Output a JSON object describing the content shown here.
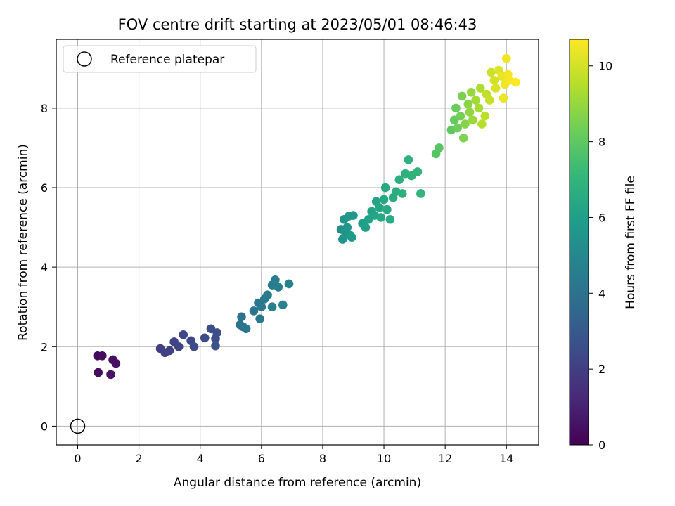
{
  "chart_data": {
    "type": "scatter",
    "title": "FOV centre drift starting at 2023/05/01 08:46:43",
    "xlabel": "Angular distance from reference (arcmin)",
    "ylabel": "Rotation from reference (arcmin)",
    "xlim": [
      -0.7,
      15.05
    ],
    "ylim": [
      -0.47,
      9.73
    ],
    "xticks": [
      0,
      2,
      4,
      6,
      8,
      10,
      12,
      14
    ],
    "yticks": [
      0,
      2,
      4,
      6,
      8
    ],
    "grid": true,
    "legend": {
      "placement": "top-left",
      "entries": [
        "Reference platepar"
      ]
    },
    "reference_point": {
      "x": 0,
      "y": 0
    },
    "colorbar": {
      "label": "Hours from first FF file",
      "range": [
        0,
        10.7
      ],
      "ticks": [
        0,
        2,
        4,
        6,
        8,
        10
      ],
      "colormap": [
        "#440154",
        "#482878",
        "#3e4989",
        "#31688e",
        "#26828e",
        "#1f9e89",
        "#35b779",
        "#6ece58",
        "#b5de2b",
        "#fde725"
      ]
    },
    "points": [
      [
        0.65,
        1.77,
        0.2
      ],
      [
        0.8,
        1.77,
        0.3
      ],
      [
        0.67,
        1.35,
        0.35
      ],
      [
        1.15,
        1.67,
        0.45
      ],
      [
        1.25,
        1.58,
        0.5
      ],
      [
        1.08,
        1.3,
        0.55
      ],
      [
        2.7,
        1.95,
        2.0
      ],
      [
        2.85,
        1.85,
        2.05
      ],
      [
        3.0,
        1.9,
        2.1
      ],
      [
        3.15,
        2.12,
        2.15
      ],
      [
        3.3,
        2.0,
        2.2
      ],
      [
        3.45,
        2.3,
        2.3
      ],
      [
        3.7,
        2.15,
        2.35
      ],
      [
        3.8,
        2.0,
        2.4
      ],
      [
        4.15,
        2.22,
        2.5
      ],
      [
        4.35,
        2.45,
        2.55
      ],
      [
        4.5,
        2.2,
        2.6
      ],
      [
        4.55,
        2.35,
        2.65
      ],
      [
        4.5,
        2.02,
        2.7
      ],
      [
        5.3,
        2.55,
        4.0
      ],
      [
        5.35,
        2.75,
        4.05
      ],
      [
        5.4,
        2.5,
        4.1
      ],
      [
        5.5,
        2.45,
        4.15
      ],
      [
        5.75,
        2.9,
        4.2
      ],
      [
        5.9,
        3.1,
        4.25
      ],
      [
        5.95,
        2.7,
        4.3
      ],
      [
        6.0,
        3.0,
        4.35
      ],
      [
        6.1,
        3.2,
        4.4
      ],
      [
        6.2,
        3.3,
        4.45
      ],
      [
        6.35,
        3.55,
        4.5
      ],
      [
        6.45,
        3.68,
        4.55
      ],
      [
        6.55,
        3.5,
        4.6
      ],
      [
        6.35,
        3.0,
        4.65
      ],
      [
        6.7,
        3.05,
        4.7
      ],
      [
        6.9,
        3.58,
        4.75
      ],
      [
        8.6,
        4.95,
        5.4
      ],
      [
        8.65,
        4.7,
        5.45
      ],
      [
        8.7,
        5.2,
        5.5
      ],
      [
        8.75,
        4.85,
        5.55
      ],
      [
        8.8,
        5.0,
        5.6
      ],
      [
        8.85,
        5.28,
        5.65
      ],
      [
        8.9,
        4.8,
        5.7
      ],
      [
        9.0,
        5.3,
        5.75
      ],
      [
        8.95,
        4.75,
        5.8
      ],
      [
        9.3,
        5.1,
        6.0
      ],
      [
        9.4,
        5.0,
        6.05
      ],
      [
        9.5,
        5.2,
        6.1
      ],
      [
        9.6,
        5.4,
        6.15
      ],
      [
        9.7,
        5.3,
        6.2
      ],
      [
        9.75,
        5.65,
        6.25
      ],
      [
        9.85,
        5.5,
        6.3
      ],
      [
        9.9,
        5.25,
        6.35
      ],
      [
        10.0,
        5.7,
        6.4
      ],
      [
        10.05,
        6.0,
        6.45
      ],
      [
        10.1,
        5.45,
        6.5
      ],
      [
        10.2,
        5.2,
        6.55
      ],
      [
        10.3,
        5.75,
        6.6
      ],
      [
        10.4,
        5.9,
        6.65
      ],
      [
        10.5,
        6.2,
        6.7
      ],
      [
        10.6,
        5.85,
        6.75
      ],
      [
        10.7,
        6.35,
        6.8
      ],
      [
        10.8,
        6.7,
        6.85
      ],
      [
        10.9,
        6.3,
        6.9
      ],
      [
        11.1,
        6.4,
        6.95
      ],
      [
        11.2,
        5.85,
        7.0
      ],
      [
        11.7,
        6.85,
        7.8
      ],
      [
        11.8,
        7.0,
        7.85
      ],
      [
        12.2,
        7.45,
        8.0
      ],
      [
        12.3,
        7.7,
        8.1
      ],
      [
        12.35,
        8.0,
        8.2
      ],
      [
        12.4,
        7.5,
        8.3
      ],
      [
        12.5,
        7.8,
        8.4
      ],
      [
        12.55,
        8.3,
        8.5
      ],
      [
        12.6,
        7.25,
        8.6
      ],
      [
        12.65,
        7.6,
        8.7
      ],
      [
        12.75,
        8.1,
        8.8
      ],
      [
        12.8,
        7.9,
        8.9
      ],
      [
        12.85,
        8.4,
        9.0
      ],
      [
        12.9,
        7.7,
        9.1
      ],
      [
        13.0,
        8.2,
        9.2
      ],
      [
        13.1,
        8.0,
        9.3
      ],
      [
        13.15,
        8.5,
        9.4
      ],
      [
        13.2,
        7.6,
        9.5
      ],
      [
        13.3,
        7.8,
        9.6
      ],
      [
        13.35,
        8.35,
        9.7
      ],
      [
        13.45,
        8.2,
        9.8
      ],
      [
        13.5,
        8.9,
        9.9
      ],
      [
        13.6,
        8.7,
        10.0
      ],
      [
        13.65,
        8.5,
        10.1
      ],
      [
        13.75,
        8.95,
        10.2
      ],
      [
        13.85,
        8.8,
        10.3
      ],
      [
        13.9,
        8.25,
        10.4
      ],
      [
        13.95,
        8.6,
        10.45
      ],
      [
        14.0,
        9.25,
        10.5
      ],
      [
        14.05,
        8.85,
        10.55
      ],
      [
        14.1,
        8.7,
        10.6
      ],
      [
        14.3,
        8.65,
        10.7
      ]
    ]
  }
}
